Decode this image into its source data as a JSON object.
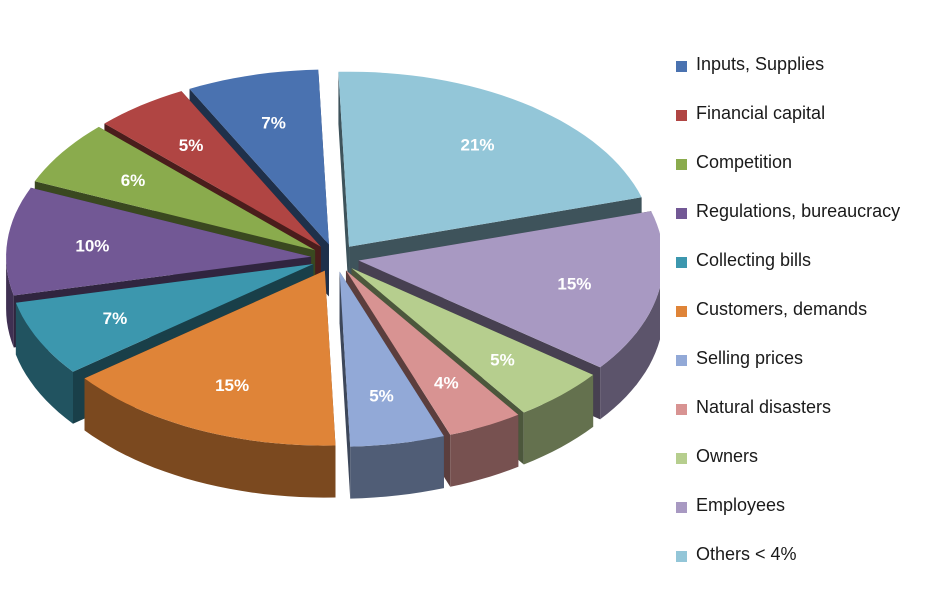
{
  "chart_data": {
    "type": "pie",
    "title": "",
    "categories": [
      "Inputs, Supplies",
      "Financial capital",
      "Competition",
      "Regulations, bureaucracy",
      "Collecting bills",
      "Customers, demands",
      "Selling prices",
      "Natural disasters",
      "Owners",
      "Employees",
      "Others < 4%"
    ],
    "values": [
      7,
      5,
      6,
      10,
      7,
      15,
      5,
      4,
      5,
      15,
      21
    ],
    "value_labels": [
      "7%",
      "5%",
      "6%",
      "10%",
      "7%",
      "15%",
      "5%",
      "4%",
      "5%",
      "15%",
      "21%"
    ],
    "colors": [
      "#4a72b0",
      "#b04543",
      "#8aab4d",
      "#725895",
      "#3c97ae",
      "#df8438",
      "#92a9d7",
      "#d89392",
      "#b6ce8e",
      "#a899c2",
      "#93c6d8"
    ],
    "style": "exploded-3d",
    "legend_position": "right"
  }
}
